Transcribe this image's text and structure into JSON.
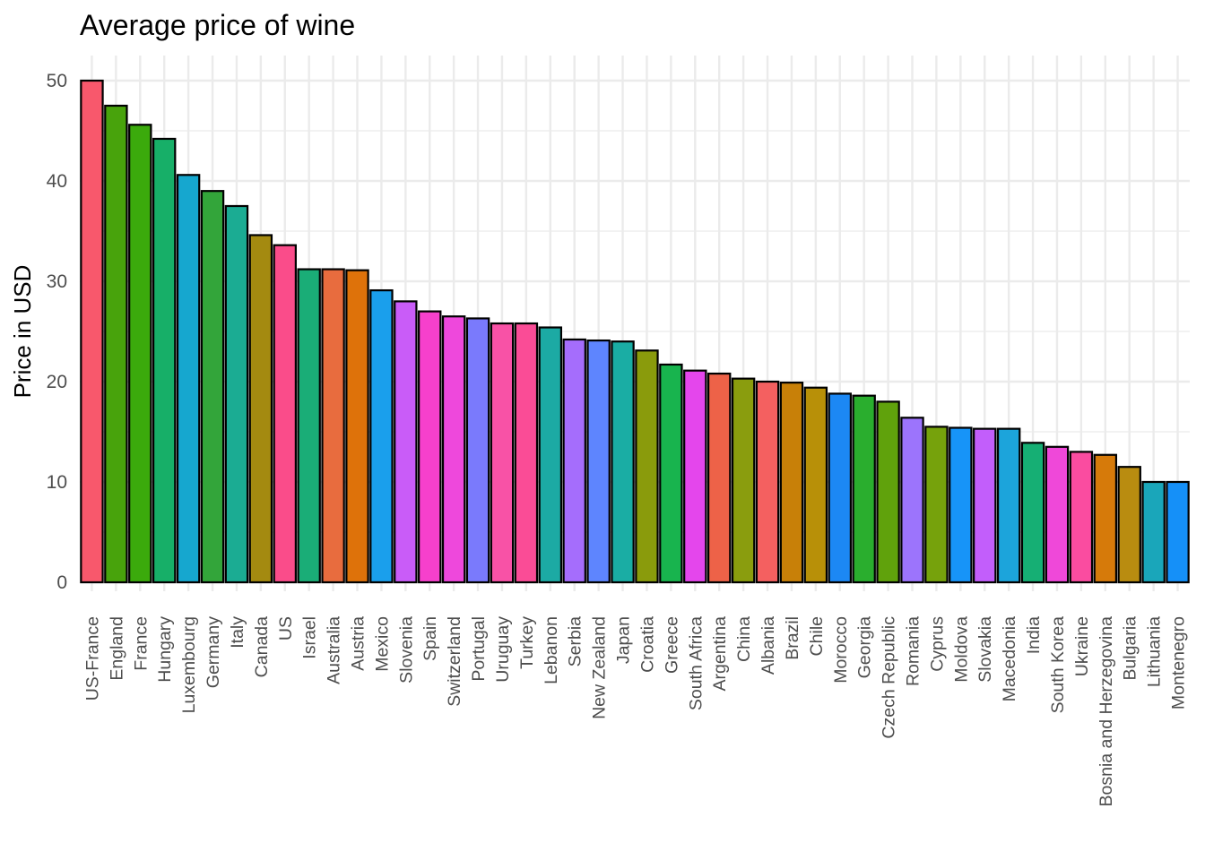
{
  "chart_data": {
    "type": "bar",
    "title": "Average price of wine",
    "xlabel": "",
    "ylabel": "Price in USD",
    "ylim": [
      0,
      52
    ],
    "yticks": [
      0,
      10,
      20,
      30,
      40,
      50
    ],
    "grid": true,
    "legend": "none",
    "categories": [
      "US-France",
      "England",
      "France",
      "Hungary",
      "Luxembourg",
      "Germany",
      "Italy",
      "Canada",
      "US",
      "Israel",
      "Australia",
      "Austria",
      "Mexico",
      "Slovenia",
      "Spain",
      "Switzerland",
      "Portugal",
      "Uruguay",
      "Turkey",
      "Lebanon",
      "Serbia",
      "New Zealand",
      "Japan",
      "Croatia",
      "Greece",
      "South Africa",
      "Argentina",
      "China",
      "Albania",
      "Brazil",
      "Chile",
      "Morocco",
      "Georgia",
      "Czech Republic",
      "Romania",
      "Cyprus",
      "Moldova",
      "Slovakia",
      "Macedonia",
      "India",
      "South Korea",
      "Ukraine",
      "Bosnia and Herzegovina",
      "Bulgaria",
      "Lithuania",
      "Montenegro"
    ],
    "values": [
      50.0,
      47.5,
      45.6,
      44.2,
      40.6,
      39.0,
      37.5,
      34.6,
      33.6,
      31.2,
      31.2,
      31.1,
      29.1,
      28.0,
      27.0,
      26.5,
      26.3,
      25.8,
      25.8,
      25.4,
      24.2,
      24.1,
      24.0,
      23.1,
      21.7,
      21.1,
      20.8,
      20.3,
      20.0,
      19.9,
      19.4,
      18.8,
      18.6,
      18.0,
      16.4,
      15.5,
      15.4,
      15.3,
      15.3,
      13.9,
      13.5,
      13.0,
      12.7,
      11.5,
      10.0,
      10.0
    ],
    "colors": [
      "#F8586C",
      "#48A30C",
      "#3BAA0C",
      "#17AF68",
      "#16A7CF",
      "#33A53A",
      "#1BAC93",
      "#A48A10",
      "#FA4C8A",
      "#1AAD77",
      "#E86C3E",
      "#DE720A",
      "#1A9FEC",
      "#C95CF8",
      "#F640CC",
      "#EE48DC",
      "#7A7AFC",
      "#F852A6",
      "#FA4C96",
      "#1CAAA4",
      "#A56DFC",
      "#5E85FE",
      "#1AADA4",
      "#8A9B0C",
      "#18B44E",
      "#E446EC",
      "#ED6248",
      "#8A9D0E",
      "#F46060",
      "#C88008",
      "#B89008",
      "#1C88F4",
      "#2AAE2E",
      "#60A20C",
      "#9C74FC",
      "#76A20C",
      "#1794F8",
      "#C25EFB",
      "#1CA4DB",
      "#16AF74",
      "#EF48D9",
      "#FA4CA0",
      "#D67A0A",
      "#B98C10",
      "#1AA6BA",
      "#1590F8"
    ]
  }
}
